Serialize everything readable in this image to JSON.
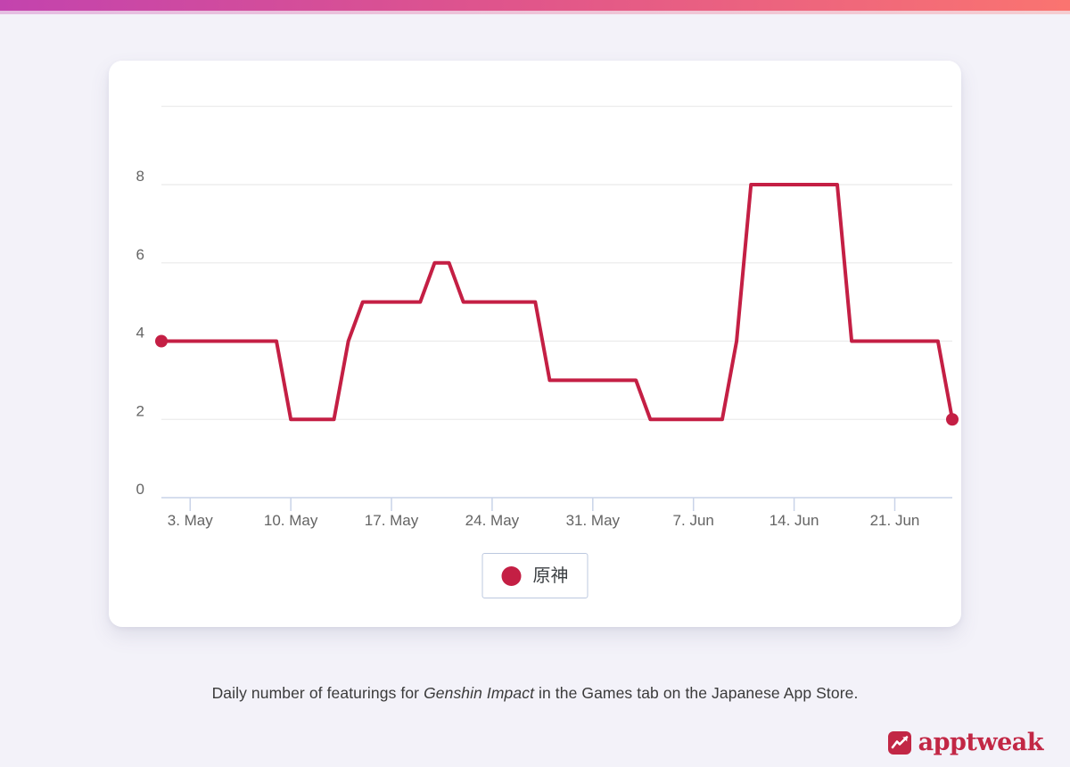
{
  "page": {
    "background": "#f3f2f9"
  },
  "topbar": {
    "gradient_left": "#c343ae",
    "gradient_mid": "#e0558b",
    "gradient_right": "#fa7470"
  },
  "chart_data": {
    "type": "line",
    "title": "",
    "xlabel": "",
    "ylabel": "",
    "ylim": [
      0,
      10
    ],
    "grid": "on",
    "legend_position": "bottom",
    "gridline_color": "#ebebeb",
    "axis_color": "#c9d3e8",
    "label_color": "#646464",
    "y_tick_labels": [
      "0",
      "2",
      "4",
      "6",
      "8"
    ],
    "gridline_values": [
      2,
      4,
      6,
      8,
      10
    ],
    "x_ticks": [
      {
        "label": "3. May",
        "index": 2
      },
      {
        "label": "10. May",
        "index": 9
      },
      {
        "label": "17. May",
        "index": 16
      },
      {
        "label": "24. May",
        "index": 23
      },
      {
        "label": "31. May",
        "index": 30
      },
      {
        "label": "7. Jun",
        "index": 37
      },
      {
        "label": "14. Jun",
        "index": 44
      },
      {
        "label": "21. Jun",
        "index": 51
      }
    ],
    "x_dates": [
      "1. May",
      "2. May",
      "3. May",
      "4. May",
      "5. May",
      "6. May",
      "7. May",
      "8. May",
      "9. May",
      "10. May",
      "11. May",
      "12. May",
      "13. May",
      "14. May",
      "15. May",
      "16. May",
      "17. May",
      "18. May",
      "19. May",
      "20. May",
      "21. May",
      "22. May",
      "23. May",
      "24. May",
      "25. May",
      "26. May",
      "27. May",
      "28. May",
      "29. May",
      "30. May",
      "31. May",
      "1. Jun",
      "2. Jun",
      "3. Jun",
      "4. Jun",
      "5. Jun",
      "6. Jun",
      "7. Jun",
      "8. Jun",
      "9. Jun",
      "10. Jun",
      "11. Jun",
      "12. Jun",
      "13. Jun",
      "14. Jun",
      "15. Jun",
      "16. Jun",
      "17. Jun",
      "18. Jun",
      "19. Jun",
      "20. Jun",
      "21. Jun",
      "22. Jun",
      "23. Jun",
      "24. Jun",
      "25. Jun"
    ],
    "series": [
      {
        "name": "原神",
        "color": "#c41f44",
        "values": [
          4,
          4,
          4,
          4,
          4,
          4,
          4,
          4,
          4,
          2,
          2,
          2,
          2,
          4,
          5,
          5,
          5,
          5,
          5,
          6,
          6,
          5,
          5,
          5,
          5,
          5,
          5,
          3,
          3,
          3,
          3,
          3,
          3,
          3,
          2,
          2,
          2,
          2,
          2,
          2,
          4,
          8,
          8,
          8,
          8,
          8,
          8,
          8,
          4,
          4,
          4,
          4,
          4,
          4,
          4,
          2
        ]
      }
    ],
    "endpoint_markers": true
  },
  "legend": {
    "label": "原神",
    "dot_color": "#c41f44"
  },
  "caption": {
    "prefix": "Daily number of featurings for ",
    "app_name": "Genshin Impact",
    "suffix": " in the Games tab on the Japanese App Store."
  },
  "logo": {
    "text": "apptweak",
    "color": "#c22745",
    "icon": "line-chart-icon"
  }
}
